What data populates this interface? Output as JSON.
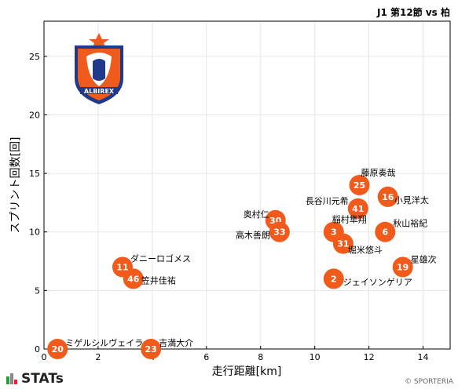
{
  "header": {
    "title": "J1 第12節 vs 柏"
  },
  "footer": {
    "brand": "STATs",
    "copyright": "© SPORTERIA"
  },
  "team_logo": {
    "icon": "albirex-niigata-crest-icon",
    "primary_color": "#f05a1a",
    "secondary_color": "#1f3a8a"
  },
  "colors": {
    "marker": "#f05a1a",
    "grid": "#e6e6e6",
    "axis": "#000000"
  },
  "chart_data": {
    "type": "scatter",
    "title": "J1 第12節 vs 柏",
    "xlabel": "走行距離[km]",
    "ylabel": "スプリント回数[回]",
    "xlim": [
      0,
      15
    ],
    "ylim": [
      0,
      28
    ],
    "xticks": [
      0,
      2,
      4,
      6,
      8,
      10,
      12,
      14
    ],
    "yticks": [
      0,
      5,
      10,
      15,
      20,
      25
    ],
    "grid": true,
    "points": [
      {
        "number": "25",
        "name": "藤原奏哉",
        "x": 11.65,
        "y": 14
      },
      {
        "number": "16",
        "name": "小見洋太",
        "x": 12.7,
        "y": 13
      },
      {
        "number": "41",
        "name": "長谷川元希",
        "x": 11.6,
        "y": 12
      },
      {
        "number": "30",
        "name": "奥村仁",
        "x": 8.55,
        "y": 11
      },
      {
        "number": "33",
        "name": "高木善朗",
        "x": 8.7,
        "y": 10
      },
      {
        "number": "3",
        "name": "稲村隼翔",
        "x": 10.7,
        "y": 10
      },
      {
        "number": "31",
        "name": "堀米悠斗",
        "x": 11.05,
        "y": 9
      },
      {
        "number": "6",
        "name": "秋山裕紀",
        "x": 12.6,
        "y": 10
      },
      {
        "number": "19",
        "name": "星雄次",
        "x": 13.25,
        "y": 7
      },
      {
        "number": "2",
        "name": "ジェイソンゲリア",
        "x": 10.7,
        "y": 6
      },
      {
        "number": "11",
        "name": "ダニーロゴメス",
        "x": 2.9,
        "y": 7
      },
      {
        "number": "46",
        "name": "笠井佳祐",
        "x": 3.3,
        "y": 6
      },
      {
        "number": "20",
        "name": "ミゲルシルヴェイラ",
        "x": 0.5,
        "y": 0
      },
      {
        "number": "23",
        "name": "吉満大介",
        "x": 3.95,
        "y": 0
      }
    ]
  }
}
